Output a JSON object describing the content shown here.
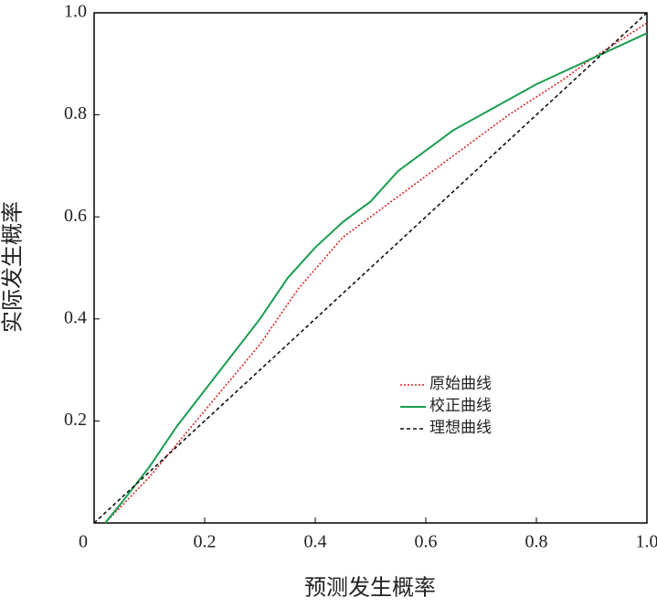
{
  "chart_data": {
    "type": "line",
    "x_label": "预测发生概率",
    "y_label": "实际发生概率",
    "xlim": [
      0,
      1
    ],
    "ylim": [
      0,
      1
    ],
    "xticks": [
      0,
      0.2,
      0.4,
      0.6,
      0.8,
      {
        "value": 1,
        "label": "1.0"
      }
    ],
    "yticks": [
      0.2,
      0.4,
      0.6,
      0.8,
      {
        "value": 1,
        "label": "1.0"
      }
    ],
    "legend": "lower-center",
    "series": [
      {
        "name": "原始曲线",
        "color": "#d62728",
        "line_style": "dotted",
        "x": [
          0.02,
          0.1,
          0.2,
          0.3,
          0.37,
          0.45,
          0.55,
          0.65,
          0.75,
          0.85,
          0.9,
          1.0
        ],
        "values": [
          0,
          0.09,
          0.22,
          0.35,
          0.46,
          0.56,
          0.64,
          0.72,
          0.8,
          0.87,
          0.91,
          0.98
        ]
      },
      {
        "name": "校正曲线",
        "color": "#1a9e50",
        "line_style": "solid",
        "x": [
          0.02,
          0.05,
          0.1,
          0.15,
          0.2,
          0.25,
          0.3,
          0.35,
          0.4,
          0.45,
          0.5,
          0.55,
          0.6,
          0.65,
          0.7,
          0.8,
          0.9,
          1.0
        ],
        "values": [
          0,
          0.04,
          0.11,
          0.19,
          0.26,
          0.33,
          0.4,
          0.48,
          0.54,
          0.59,
          0.63,
          0.69,
          0.73,
          0.77,
          0.8,
          0.86,
          0.91,
          0.96
        ]
      },
      {
        "name": "理想曲线",
        "color": "#111111",
        "line_style": "dashed",
        "x": [
          0,
          1
        ],
        "values": [
          0,
          1
        ]
      }
    ]
  }
}
